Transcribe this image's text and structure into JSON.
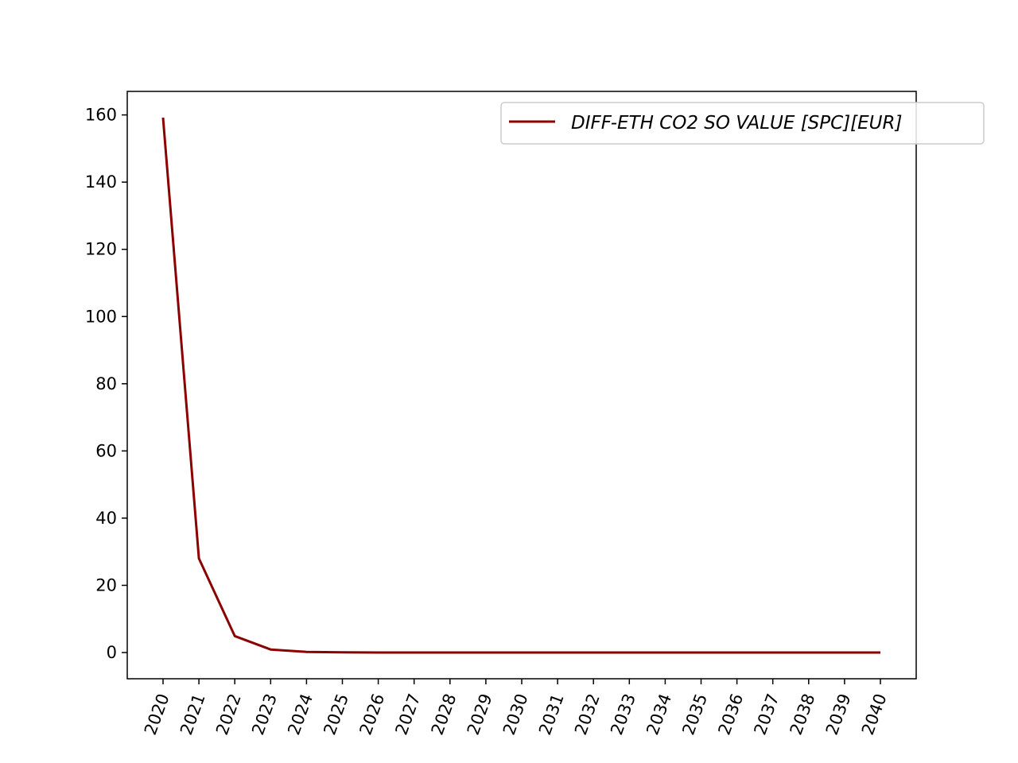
{
  "chart_data": {
    "type": "line",
    "title": "",
    "xlabel": "",
    "ylabel": "",
    "x": [
      "2020",
      "2021",
      "2022",
      "2023",
      "2024",
      "2025",
      "2026",
      "2027",
      "2028",
      "2029",
      "2030",
      "2031",
      "2032",
      "2033",
      "2034",
      "2035",
      "2036",
      "2037",
      "2038",
      "2039",
      "2040"
    ],
    "series": [
      {
        "name": "DIFF-ETH CO2 SO VALUE [SPC][EUR]",
        "color": "#8b0000",
        "values": [
          159.2,
          28.0,
          4.9,
          0.9,
          0.2,
          0.05,
          0.01,
          0,
          0,
          0,
          0,
          0,
          0,
          0,
          0,
          0,
          0,
          0,
          0,
          0,
          0
        ]
      }
    ],
    "ylim": [
      -7.8,
      167
    ],
    "yticks": [
      0,
      20,
      40,
      60,
      80,
      100,
      120,
      140,
      160
    ],
    "legend": "top-right",
    "grid": false
  }
}
